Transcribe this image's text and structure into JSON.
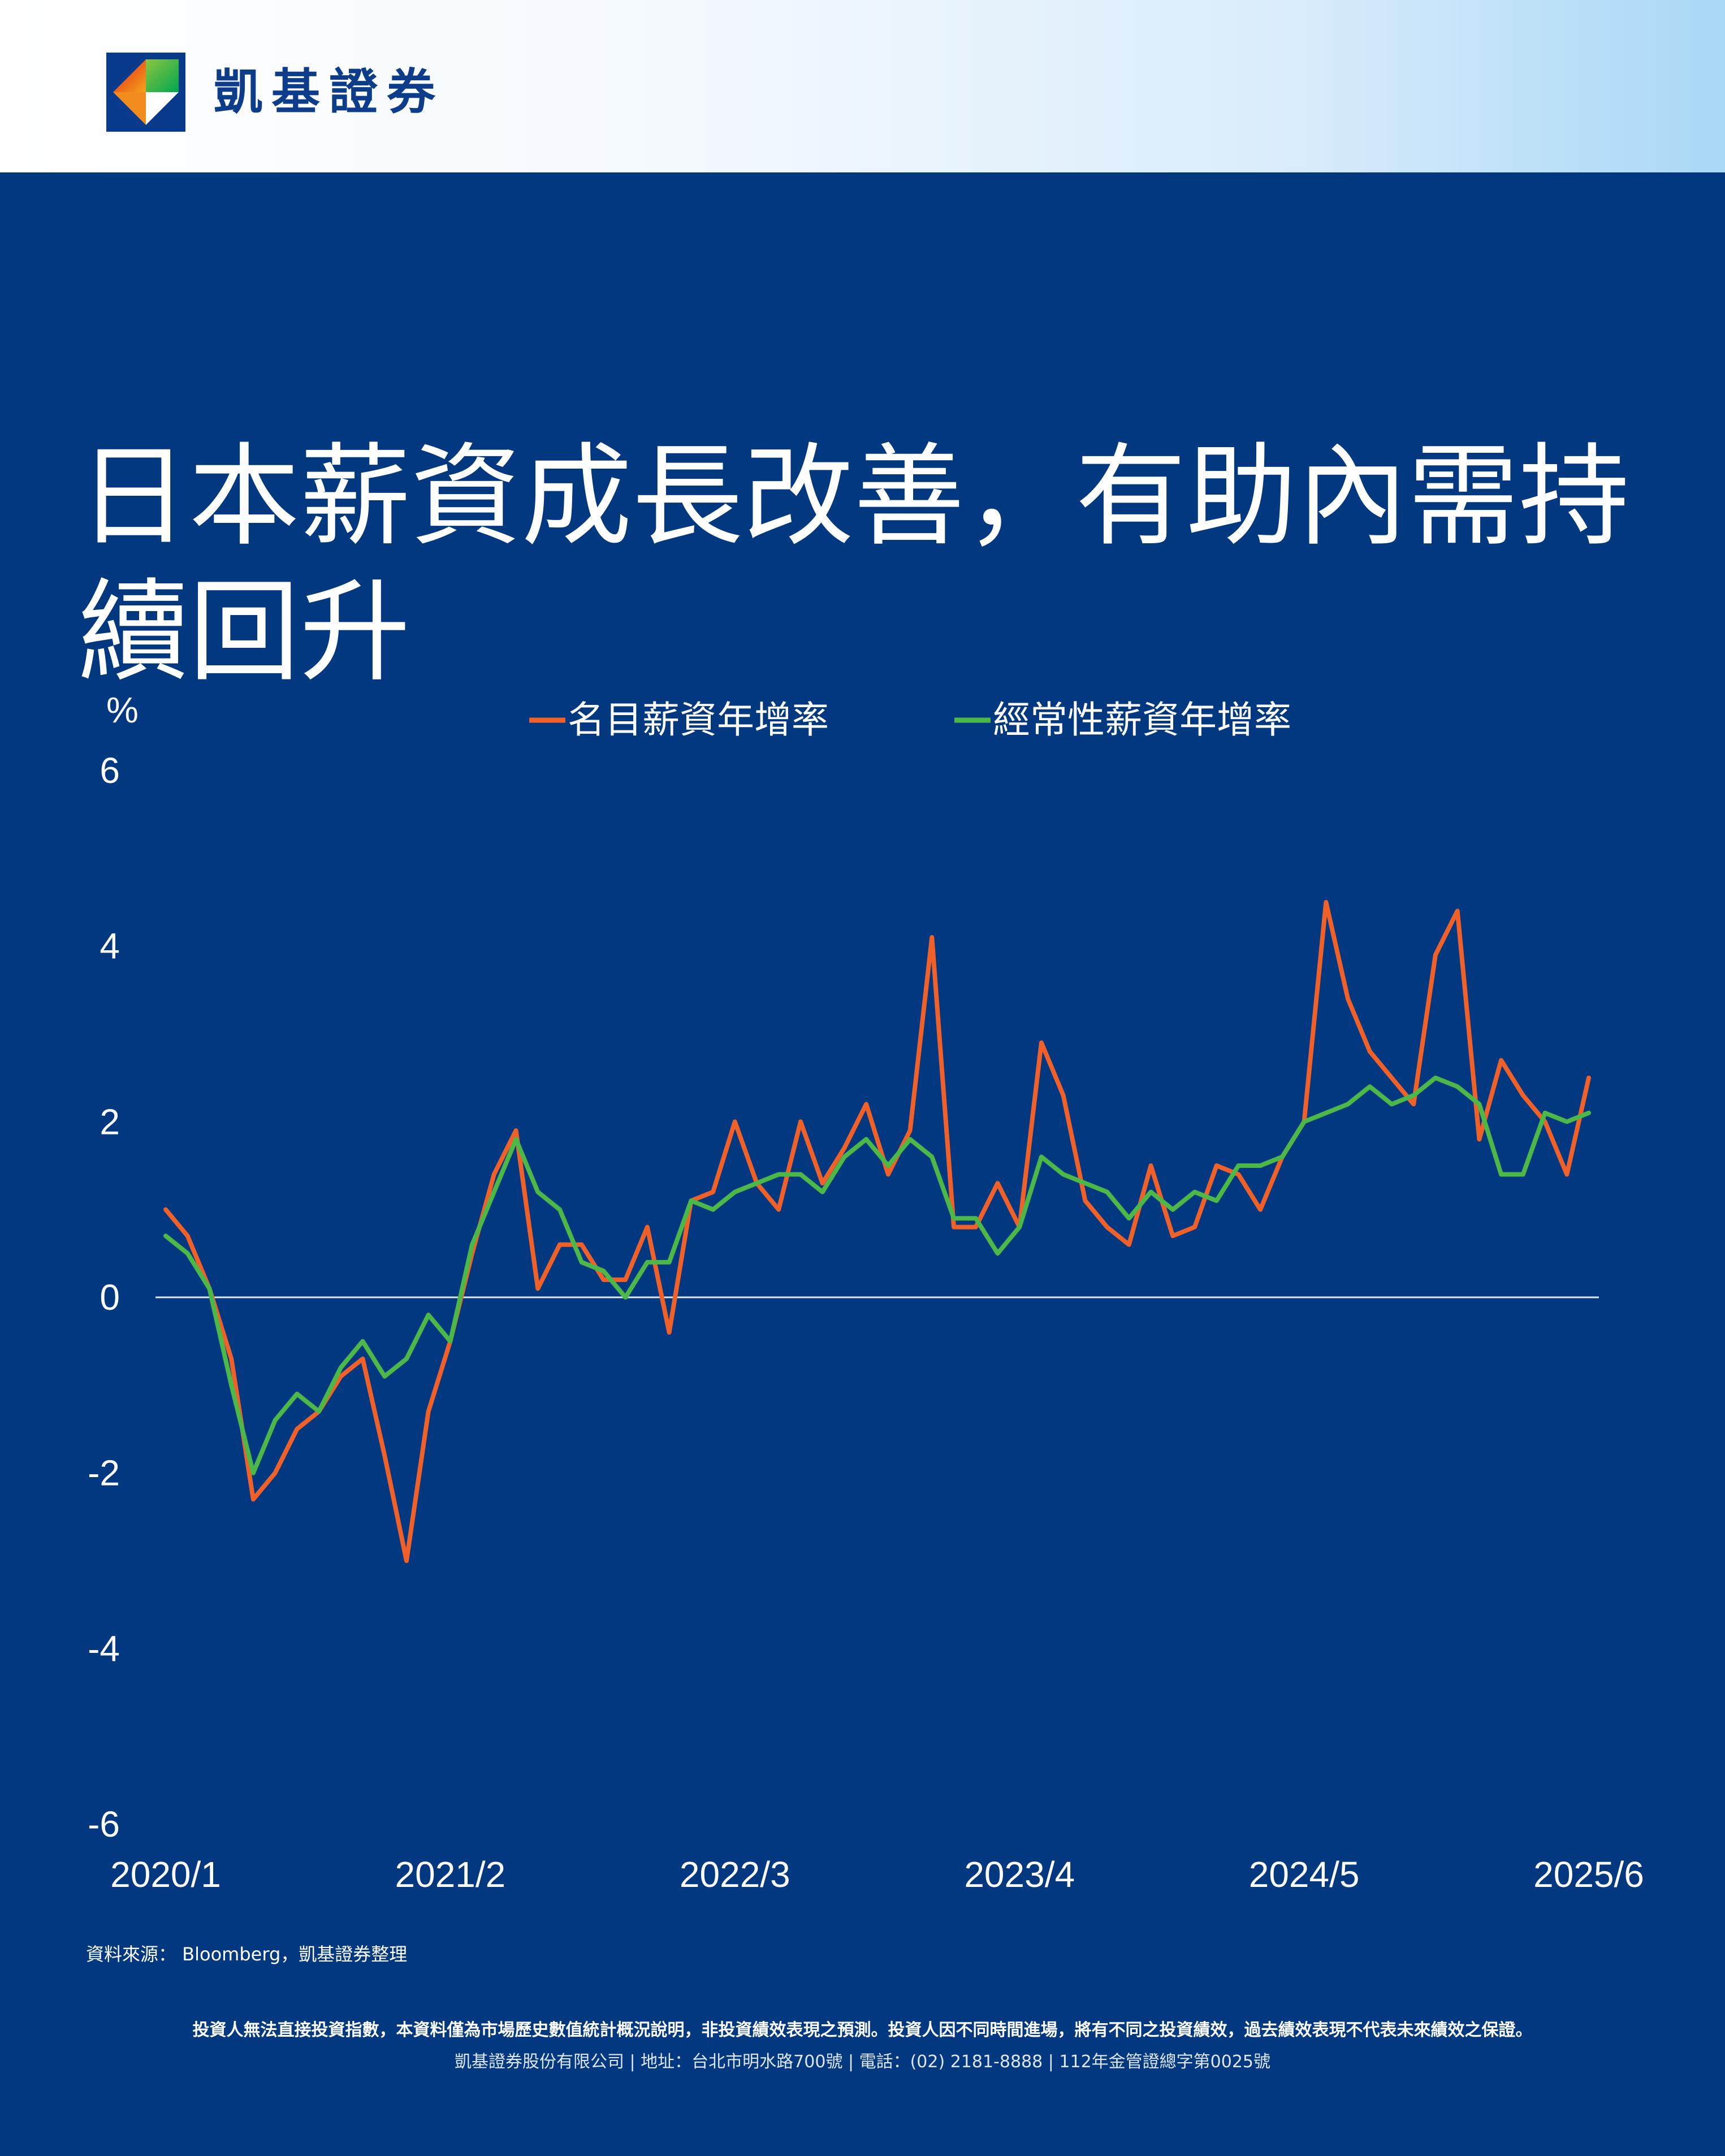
{
  "brand": {
    "name": "凱基證券"
  },
  "title": "日本薪資成長改善，有助內需持續回升",
  "colors": {
    "background": "#02387f",
    "nominal": "#f0612a",
    "regular": "#4cb848",
    "zero_line": "#dfe6f0"
  },
  "chart_data": {
    "type": "line",
    "title": "",
    "ylabel": "%",
    "xlabel": "",
    "ylim": [
      -6,
      6
    ],
    "yticks": [
      6,
      4,
      2,
      0,
      -2,
      -4,
      -6
    ],
    "xticks": [
      {
        "label": "2020/1",
        "index": 0
      },
      {
        "label": "2021/2",
        "index": 13
      },
      {
        "label": "2022/3",
        "index": 26
      },
      {
        "label": "2023/4",
        "index": 39
      },
      {
        "label": "2024/5",
        "index": 52
      },
      {
        "label": "2025/6",
        "index": 65
      }
    ],
    "grid": false,
    "legend_position": "top-center",
    "series": [
      {
        "name": "名目薪資年增率",
        "color": "#f0612a",
        "values": [
          1.0,
          0.7,
          0.1,
          -0.7,
          -2.3,
          -2.0,
          -1.5,
          -1.3,
          -0.9,
          -0.7,
          -1.8,
          -3.0,
          -1.3,
          -0.5,
          0.5,
          1.4,
          1.9,
          0.1,
          0.6,
          0.6,
          0.2,
          0.2,
          0.8,
          -0.4,
          1.1,
          1.2,
          2.0,
          1.3,
          1.0,
          2.0,
          1.3,
          1.7,
          2.2,
          1.4,
          1.9,
          4.1,
          0.8,
          0.8,
          1.3,
          0.8,
          2.9,
          2.3,
          1.1,
          0.8,
          0.6,
          1.5,
          0.7,
          0.8,
          1.5,
          1.4,
          1.0,
          1.6,
          2.0,
          4.5,
          3.4,
          2.8,
          2.5,
          2.2,
          3.9,
          4.4,
          1.8,
          2.7,
          2.3,
          2.0,
          1.4,
          2.5
        ]
      },
      {
        "name": "經常性薪資年增率",
        "color": "#4cb848",
        "values": [
          0.7,
          0.5,
          0.1,
          -1.0,
          -2.0,
          -1.4,
          -1.1,
          -1.3,
          -0.8,
          -0.5,
          -0.9,
          -0.7,
          -0.2,
          -0.5,
          0.6,
          1.2,
          1.8,
          1.2,
          1.0,
          0.4,
          0.3,
          0.0,
          0.4,
          0.4,
          1.1,
          1.0,
          1.2,
          1.3,
          1.4,
          1.4,
          1.2,
          1.6,
          1.8,
          1.5,
          1.8,
          1.6,
          0.9,
          0.9,
          0.5,
          0.8,
          1.6,
          1.4,
          1.3,
          1.2,
          0.9,
          1.2,
          1.0,
          1.2,
          1.1,
          1.5,
          1.5,
          1.6,
          2.0,
          2.1,
          2.2,
          2.4,
          2.2,
          2.3,
          2.5,
          2.4,
          2.2,
          1.4,
          1.4,
          2.1,
          2.0,
          2.1
        ]
      }
    ]
  },
  "footer": {
    "source": "資料來源： Bloomberg，凱基證券整理",
    "disclaimer": "投資人無法直接投資指數，本資料僅為市場歷史數值統計概況說明，非投資績效表現之預測。投資人因不同時間進場，將有不同之投資績效，過去績效表現不代表未來績效之保證。",
    "company": "凱基證券股份有限公司 | 地址：台北市明水路700號 | 電話：(02) 2181-8888 | 112年金管證總字第0025號"
  }
}
